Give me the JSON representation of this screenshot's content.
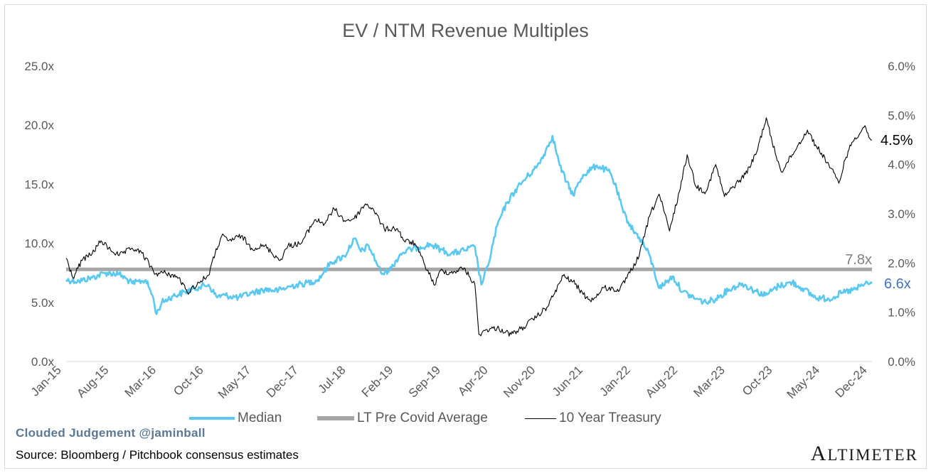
{
  "chart_data": {
    "type": "line",
    "title": "EV / NTM Revenue Multiples",
    "x_tick_labels": [
      "Jan-15",
      "Aug-15",
      "Mar-16",
      "Oct-16",
      "May-17",
      "Dec-17",
      "Jul-18",
      "Feb-19",
      "Sep-19",
      "Apr-20",
      "Nov-20",
      "Jun-21",
      "Jan-22",
      "Aug-22",
      "Mar-23",
      "Oct-23",
      "May-24",
      "Dec-24"
    ],
    "x_range": [
      "2015-01-01",
      "2025-02-15"
    ],
    "y_left": {
      "ticks": [
        "25.0x",
        "20.0x",
        "15.0x",
        "10.0x",
        "5.0x",
        "0.0x"
      ],
      "ylim": [
        0,
        25
      ]
    },
    "y_right": {
      "ticks": [
        "6.0%",
        "5.0%",
        "4.0%",
        "3.0%",
        "2.0%",
        "1.0%",
        "0.0%"
      ],
      "ylim": [
        0,
        6
      ]
    },
    "grid": false,
    "legend_position": "bottom",
    "series": [
      {
        "name": "Median",
        "axis": "left",
        "color": "#5bc8ef",
        "points": [
          [
            "2015-01-01",
            6.9
          ],
          [
            "2015-03-01",
            6.8
          ],
          [
            "2015-05-01",
            7.1
          ],
          [
            "2015-07-01",
            7.5
          ],
          [
            "2015-09-01",
            7.4
          ],
          [
            "2015-11-01",
            6.6
          ],
          [
            "2016-01-01",
            6.9
          ],
          [
            "2016-02-01",
            5.6
          ],
          [
            "2016-02-20",
            4.0
          ],
          [
            "2016-03-15",
            5.0
          ],
          [
            "2016-05-01",
            5.5
          ],
          [
            "2016-07-01",
            5.9
          ],
          [
            "2016-09-01",
            6.3
          ],
          [
            "2016-10-15",
            6.5
          ],
          [
            "2016-11-20",
            5.5
          ],
          [
            "2017-01-01",
            5.6
          ],
          [
            "2017-03-01",
            5.4
          ],
          [
            "2017-05-01",
            5.8
          ],
          [
            "2017-07-01",
            6.1
          ],
          [
            "2017-09-01",
            6.0
          ],
          [
            "2017-11-01",
            6.4
          ],
          [
            "2018-01-01",
            6.6
          ],
          [
            "2018-03-01",
            6.9
          ],
          [
            "2018-05-01",
            8.4
          ],
          [
            "2018-07-01",
            8.9
          ],
          [
            "2018-08-15",
            10.4
          ],
          [
            "2018-09-15",
            9.3
          ],
          [
            "2018-10-20",
            9.8
          ],
          [
            "2018-12-20",
            7.4
          ],
          [
            "2019-02-01",
            7.9
          ],
          [
            "2019-03-15",
            9.1
          ],
          [
            "2019-05-01",
            9.5
          ],
          [
            "2019-06-15",
            9.7
          ],
          [
            "2019-08-01",
            9.9
          ],
          [
            "2019-09-15",
            9.5
          ],
          [
            "2019-11-01",
            9.1
          ],
          [
            "2020-01-01",
            9.4
          ],
          [
            "2020-02-20",
            9.7
          ],
          [
            "2020-03-20",
            6.5
          ],
          [
            "2020-04-20",
            8.1
          ],
          [
            "2020-06-01",
            11.5
          ],
          [
            "2020-07-15",
            13.4
          ],
          [
            "2020-09-01",
            14.7
          ],
          [
            "2020-10-15",
            15.6
          ],
          [
            "2020-12-01",
            16.5
          ],
          [
            "2021-01-01",
            17.5
          ],
          [
            "2021-02-10",
            19.1
          ],
          [
            "2021-03-15",
            16.6
          ],
          [
            "2021-04-15",
            15.2
          ],
          [
            "2021-05-15",
            14.1
          ],
          [
            "2021-07-01",
            15.8
          ],
          [
            "2021-09-01",
            16.6
          ],
          [
            "2021-11-01",
            16.0
          ],
          [
            "2021-12-01",
            14.6
          ],
          [
            "2022-01-01",
            12.6
          ],
          [
            "2022-02-15",
            11.1
          ],
          [
            "2022-03-15",
            10.5
          ],
          [
            "2022-05-01",
            9.0
          ],
          [
            "2022-06-15",
            6.2
          ],
          [
            "2022-08-15",
            7.2
          ],
          [
            "2022-10-01",
            5.9
          ],
          [
            "2022-12-01",
            5.3
          ],
          [
            "2023-01-15",
            5.0
          ],
          [
            "2023-03-01",
            5.3
          ],
          [
            "2023-05-01",
            6.1
          ],
          [
            "2023-07-01",
            6.6
          ],
          [
            "2023-08-15",
            6.1
          ],
          [
            "2023-10-15",
            5.6
          ],
          [
            "2023-12-15",
            6.4
          ],
          [
            "2024-02-15",
            6.7
          ],
          [
            "2024-04-01",
            6.2
          ],
          [
            "2024-06-01",
            5.4
          ],
          [
            "2024-08-01",
            5.3
          ],
          [
            "2024-10-01",
            5.8
          ],
          [
            "2024-12-01",
            6.1
          ],
          [
            "2025-01-15",
            6.6
          ],
          [
            "2025-02-15",
            6.6
          ]
        ]
      },
      {
        "name": "LT Pre Covid Average",
        "axis": "left",
        "color": "#a6a6a6",
        "value": 7.8
      },
      {
        "name": "10 Year Treasury",
        "axis": "right",
        "color": "#000000",
        "points": [
          [
            "2015-01-01",
            2.1
          ],
          [
            "2015-02-01",
            1.7
          ],
          [
            "2015-03-15",
            2.05
          ],
          [
            "2015-05-01",
            2.2
          ],
          [
            "2015-06-10",
            2.45
          ],
          [
            "2015-07-15",
            2.3
          ],
          [
            "2015-09-01",
            2.15
          ],
          [
            "2015-11-01",
            2.3
          ],
          [
            "2015-12-15",
            2.2
          ],
          [
            "2016-02-15",
            1.78
          ],
          [
            "2016-04-01",
            1.8
          ],
          [
            "2016-06-01",
            1.7
          ],
          [
            "2016-07-10",
            1.4
          ],
          [
            "2016-09-01",
            1.6
          ],
          [
            "2016-10-15",
            1.75
          ],
          [
            "2016-11-15",
            2.2
          ],
          [
            "2016-12-15",
            2.55
          ],
          [
            "2017-01-15",
            2.45
          ],
          [
            "2017-03-15",
            2.55
          ],
          [
            "2017-05-01",
            2.3
          ],
          [
            "2017-07-01",
            2.35
          ],
          [
            "2017-09-08",
            2.05
          ],
          [
            "2017-10-15",
            2.35
          ],
          [
            "2017-12-15",
            2.4
          ],
          [
            "2018-02-15",
            2.88
          ],
          [
            "2018-04-01",
            2.8
          ],
          [
            "2018-05-15",
            3.1
          ],
          [
            "2018-07-01",
            2.86
          ],
          [
            "2018-08-15",
            2.9
          ],
          [
            "2018-10-05",
            3.2
          ],
          [
            "2018-11-10",
            3.1
          ],
          [
            "2018-12-31",
            2.69
          ],
          [
            "2019-03-01",
            2.7
          ],
          [
            "2019-04-01",
            2.45
          ],
          [
            "2019-05-20",
            2.4
          ],
          [
            "2019-07-01",
            2.0
          ],
          [
            "2019-08-20",
            1.55
          ],
          [
            "2019-09-15",
            1.85
          ],
          [
            "2019-11-01",
            1.8
          ],
          [
            "2020-01-01",
            1.9
          ],
          [
            "2020-02-20",
            1.55
          ],
          [
            "2020-03-09",
            0.55
          ],
          [
            "2020-04-15",
            0.65
          ],
          [
            "2020-06-01",
            0.68
          ],
          [
            "2020-08-04",
            0.55
          ],
          [
            "2020-10-01",
            0.7
          ],
          [
            "2020-12-01",
            0.92
          ],
          [
            "2021-01-15",
            1.1
          ],
          [
            "2021-02-15",
            1.35
          ],
          [
            "2021-03-31",
            1.74
          ],
          [
            "2021-05-15",
            1.62
          ],
          [
            "2021-07-15",
            1.3
          ],
          [
            "2021-08-15",
            1.25
          ],
          [
            "2021-10-01",
            1.5
          ],
          [
            "2021-12-15",
            1.45
          ],
          [
            "2022-01-31",
            1.8
          ],
          [
            "2022-03-15",
            2.15
          ],
          [
            "2022-05-01",
            2.95
          ],
          [
            "2022-06-14",
            3.4
          ],
          [
            "2022-08-01",
            2.65
          ],
          [
            "2022-09-15",
            3.45
          ],
          [
            "2022-10-21",
            4.2
          ],
          [
            "2022-12-01",
            3.55
          ],
          [
            "2023-01-15",
            3.45
          ],
          [
            "2023-03-01",
            4.0
          ],
          [
            "2023-04-10",
            3.35
          ],
          [
            "2023-06-01",
            3.6
          ],
          [
            "2023-07-15",
            3.8
          ],
          [
            "2023-09-01",
            4.2
          ],
          [
            "2023-10-19",
            4.95
          ],
          [
            "2023-11-15",
            4.45
          ],
          [
            "2023-12-27",
            3.85
          ],
          [
            "2024-02-15",
            4.2
          ],
          [
            "2024-04-25",
            4.7
          ],
          [
            "2024-06-01",
            4.4
          ],
          [
            "2024-08-01",
            4.0
          ],
          [
            "2024-09-16",
            3.62
          ],
          [
            "2024-10-15",
            4.1
          ],
          [
            "2024-11-15",
            4.45
          ],
          [
            "2025-01-14",
            4.79
          ],
          [
            "2025-02-01",
            4.55
          ],
          [
            "2025-02-15",
            4.5
          ]
        ]
      }
    ],
    "annotations": [
      {
        "text": "7.8x",
        "color": "#808080"
      },
      {
        "text": "4.5%",
        "color": "#000000"
      },
      {
        "text": "6.6x",
        "color": "#4472c4"
      }
    ]
  },
  "footer": {
    "credit": "Clouded Judgement @jaminball",
    "source": "Source: Bloomberg / Pitchbook consensus estimates",
    "brand_first": "A",
    "brand_rest": "LTIMETER"
  }
}
